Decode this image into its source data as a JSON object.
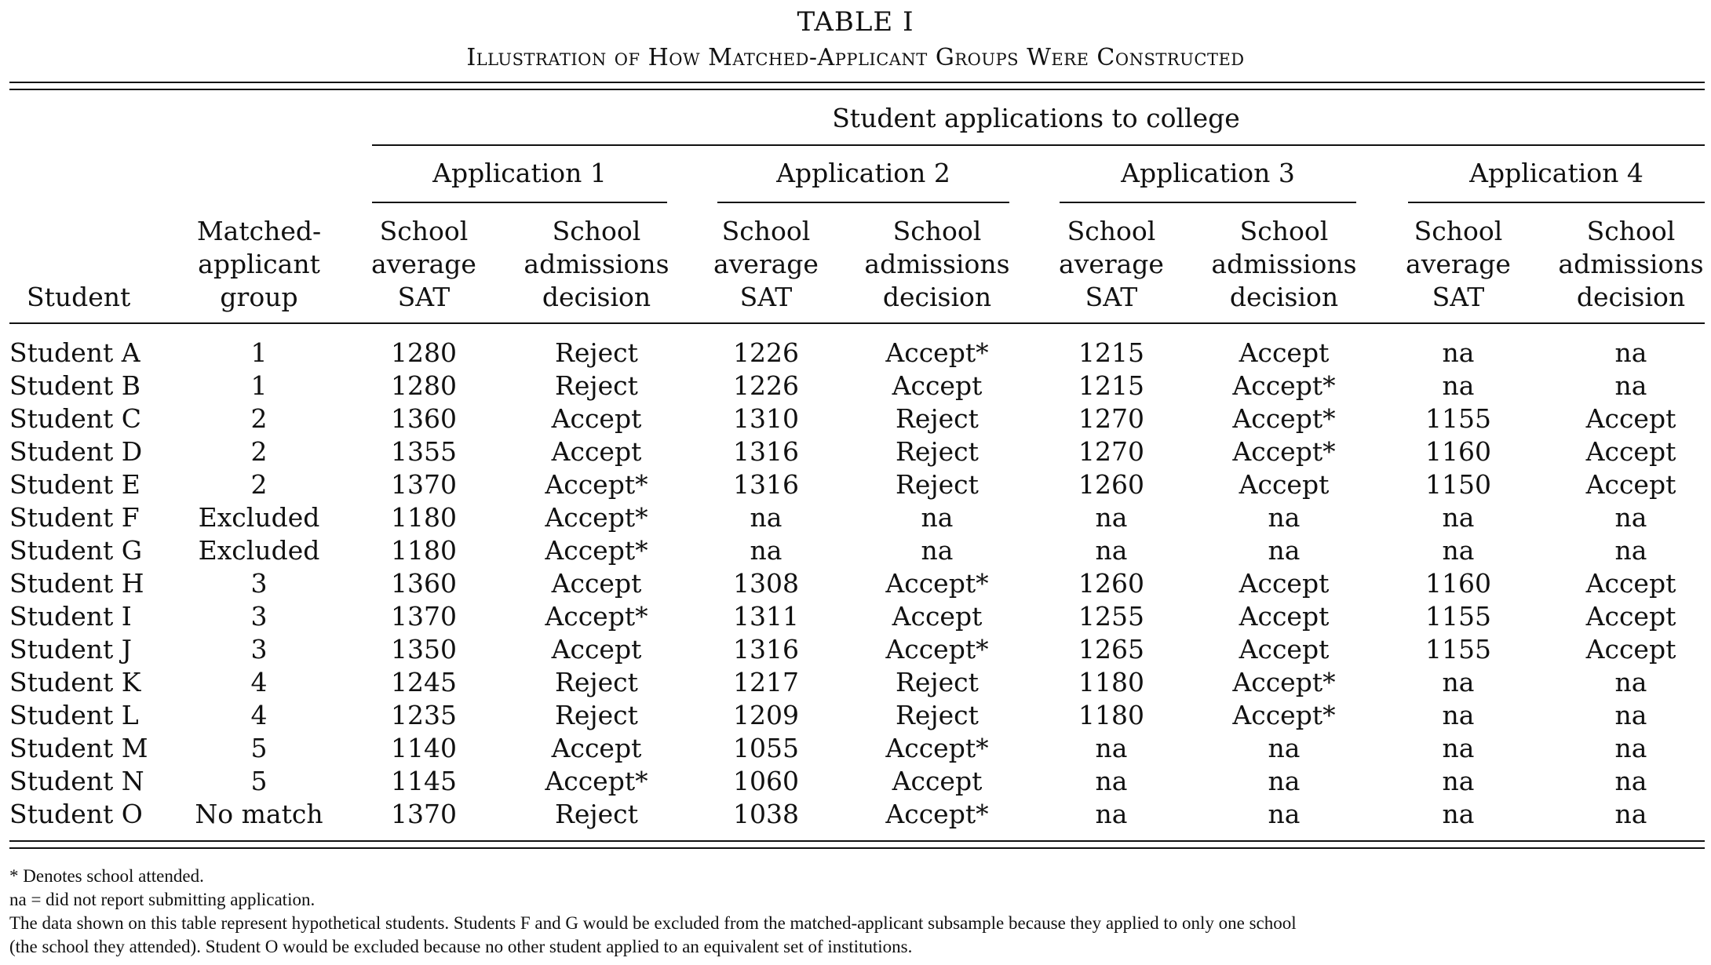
{
  "table_label": "TABLE I",
  "table_title": "Illustration of How Matched-Applicant Groups Were Constructed",
  "spanner": "Student applications to college",
  "applications": [
    "Application 1",
    "Application 2",
    "Application 3",
    "Application 4"
  ],
  "col_headers": {
    "student": "Student",
    "group": [
      "Matched-",
      "applicant",
      "group"
    ],
    "sat": [
      "School",
      "average",
      "SAT"
    ],
    "decision": [
      "School",
      "admissions",
      "decision"
    ]
  },
  "rows": [
    [
      "Student A",
      "1",
      "1280",
      "Reject",
      "1226",
      "Accept*",
      "1215",
      "Accept",
      "na",
      "na"
    ],
    [
      "Student B",
      "1",
      "1280",
      "Reject",
      "1226",
      "Accept",
      "1215",
      "Accept*",
      "na",
      "na"
    ],
    [
      "Student C",
      "2",
      "1360",
      "Accept",
      "1310",
      "Reject",
      "1270",
      "Accept*",
      "1155",
      "Accept"
    ],
    [
      "Student D",
      "2",
      "1355",
      "Accept",
      "1316",
      "Reject",
      "1270",
      "Accept*",
      "1160",
      "Accept"
    ],
    [
      "Student E",
      "2",
      "1370",
      "Accept*",
      "1316",
      "Reject",
      "1260",
      "Accept",
      "1150",
      "Accept"
    ],
    [
      "Student F",
      "Excluded",
      "1180",
      "Accept*",
      "na",
      "na",
      "na",
      "na",
      "na",
      "na"
    ],
    [
      "Student G",
      "Excluded",
      "1180",
      "Accept*",
      "na",
      "na",
      "na",
      "na",
      "na",
      "na"
    ],
    [
      "Student H",
      "3",
      "1360",
      "Accept",
      "1308",
      "Accept*",
      "1260",
      "Accept",
      "1160",
      "Accept"
    ],
    [
      "Student I",
      "3",
      "1370",
      "Accept*",
      "1311",
      "Accept",
      "1255",
      "Accept",
      "1155",
      "Accept"
    ],
    [
      "Student J",
      "3",
      "1350",
      "Accept",
      "1316",
      "Accept*",
      "1265",
      "Accept",
      "1155",
      "Accept"
    ],
    [
      "Student K",
      "4",
      "1245",
      "Reject",
      "1217",
      "Reject",
      "1180",
      "Accept*",
      "na",
      "na"
    ],
    [
      "Student L",
      "4",
      "1235",
      "Reject",
      "1209",
      "Reject",
      "1180",
      "Accept*",
      "na",
      "na"
    ],
    [
      "Student M",
      "5",
      "1140",
      "Accept",
      "1055",
      "Accept*",
      "na",
      "na",
      "na",
      "na"
    ],
    [
      "Student N",
      "5",
      "1145",
      "Accept*",
      "1060",
      "Accept",
      "na",
      "na",
      "na",
      "na"
    ],
    [
      "Student O",
      "No match",
      "1370",
      "Reject",
      "1038",
      "Accept*",
      "na",
      "na",
      "na",
      "na"
    ]
  ],
  "footnotes": [
    "* Denotes school attended.",
    "na = did not report submitting application.",
    "The data shown on this table represent hypothetical students. Students F and G would be excluded from the matched-applicant subsample because they applied to only one school",
    "(the school they attended). Student O would be excluded because no other student applied to an equivalent set of institutions."
  ]
}
